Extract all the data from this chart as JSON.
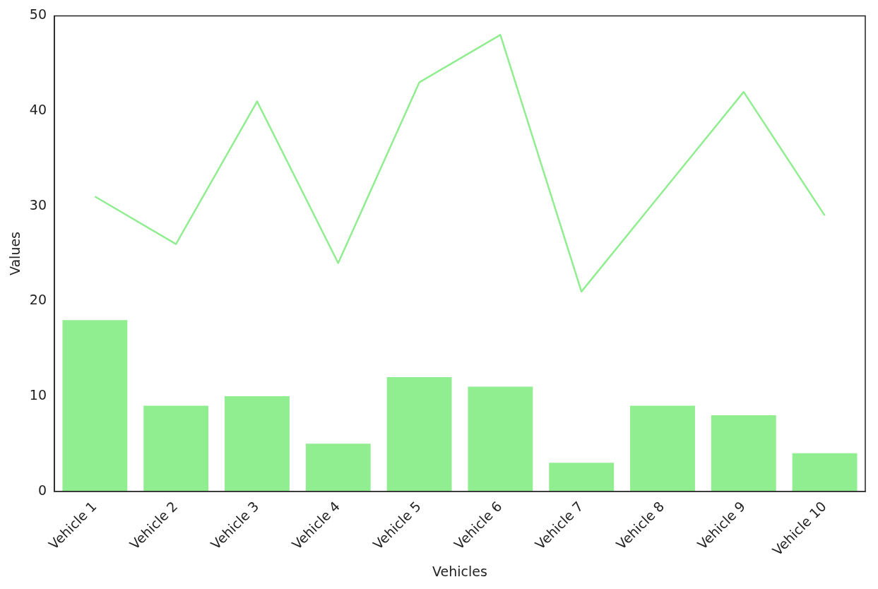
{
  "chart_data": {
    "type": "bar",
    "xlabel": "Vehicles",
    "ylabel": "Values",
    "categories": [
      "Vehicle 1",
      "Vehicle 2",
      "Vehicle 3",
      "Vehicle 4",
      "Vehicle 5",
      "Vehicle 6",
      "Vehicle 7",
      "Vehicle 8",
      "Vehicle 9",
      "Vehicle 10"
    ],
    "series": [
      {
        "color": "#90ee90",
        "values": [
          18,
          9,
          10,
          5,
          12,
          11,
          3,
          9,
          8,
          4
        ]
      },
      {
        "type": "line",
        "color": "#90ee90",
        "values": [
          31,
          26,
          41,
          24,
          43,
          48,
          21,
          31.5,
          42,
          29
        ]
      }
    ],
    "ylim": [
      0,
      50
    ],
    "yticks": [
      0,
      10,
      20,
      30,
      40,
      50
    ]
  }
}
